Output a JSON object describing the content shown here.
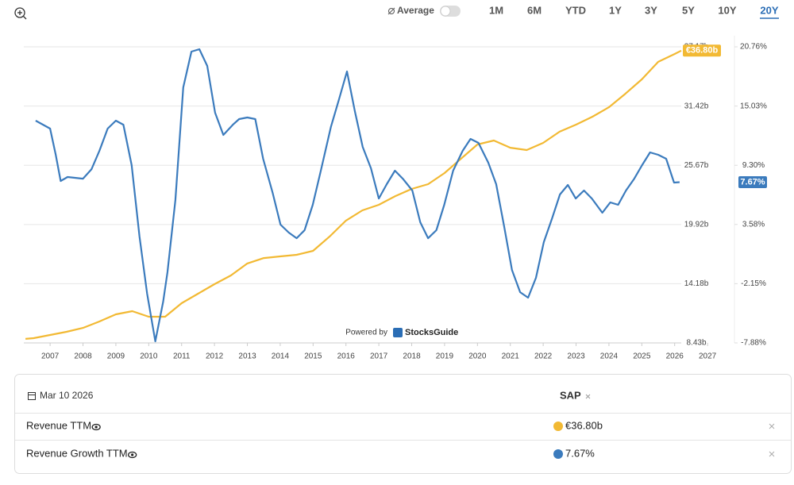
{
  "toolbar": {
    "average": "Average",
    "ranges": [
      "1M",
      "6M",
      "YTD",
      "1Y",
      "3Y",
      "5Y",
      "10Y",
      "20Y"
    ],
    "active": "20Y"
  },
  "watermark": {
    "prefix": "Powered by",
    "brand": "StocksGuide"
  },
  "chart_data": {
    "type": "line",
    "step": true,
    "grid": true,
    "xlim": [
      2006.2,
      2026.2
    ],
    "xticks": [
      2007,
      2008,
      2009,
      2010,
      2011,
      2012,
      2013,
      2014,
      2015,
      2016,
      2017,
      2018,
      2019,
      2020,
      2021,
      2022,
      2023,
      2024,
      2025,
      2026,
      2027
    ],
    "ylim": [
      8.43,
      37.17
    ],
    "yticks": [
      {
        "value": 8.43,
        "label": "8.43b"
      },
      {
        "value": 14.18,
        "label": "14.18b"
      },
      {
        "value": 19.92,
        "label": "19.92b"
      },
      {
        "value": 25.67,
        "label": "25.67b"
      },
      {
        "value": 31.42,
        "label": "31.42b"
      },
      {
        "value": 37.17,
        "label": "37.17b"
      }
    ],
    "y2lim": [
      -7.88,
      20.76
    ],
    "y2ticks": [
      {
        "value": -7.88,
        "label": "-7.88%"
      },
      {
        "value": -2.15,
        "label": "-2.15%"
      },
      {
        "value": 3.58,
        "label": "3.58%"
      },
      {
        "value": 9.3,
        "label": "9.30%"
      },
      {
        "value": 15.03,
        "label": "15.03%"
      },
      {
        "value": 20.76,
        "label": "20.76%"
      }
    ],
    "series": [
      {
        "name": "Revenue TTM",
        "color": "#f2b933",
        "end_label": "€36.80b",
        "x": [
          2006.25,
          2006.5,
          2007.0,
          2007.5,
          2008.0,
          2008.5,
          2009.0,
          2009.5,
          2010.0,
          2010.5,
          2011.0,
          2011.5,
          2012.0,
          2012.5,
          2013.0,
          2013.5,
          2014.0,
          2014.5,
          2015.0,
          2015.5,
          2016.0,
          2016.5,
          2017.0,
          2017.5,
          2018.0,
          2018.5,
          2019.0,
          2019.5,
          2020.0,
          2020.5,
          2021.0,
          2021.5,
          2022.0,
          2022.5,
          2023.0,
          2023.5,
          2024.0,
          2024.5,
          2025.0,
          2025.5,
          2026.0,
          2026.2
        ],
        "values": [
          8.82,
          8.89,
          9.2,
          9.51,
          9.89,
          10.51,
          11.2,
          11.51,
          10.97,
          10.97,
          12.28,
          13.21,
          14.13,
          14.98,
          16.14,
          16.67,
          16.83,
          16.98,
          17.37,
          18.75,
          20.3,
          21.3,
          21.84,
          22.68,
          23.38,
          23.84,
          24.92,
          26.31,
          27.69,
          28.08,
          27.38,
          27.15,
          27.85,
          28.93,
          29.62,
          30.39,
          31.31,
          32.62,
          34.01,
          35.71,
          36.48,
          36.8
        ]
      },
      {
        "name": "Revenue Growth TTM",
        "color": "#3b7bbd",
        "axis": "y2",
        "end_label": "7.67%",
        "x": [
          2006.56,
          2007.0,
          2007.17,
          2007.32,
          2007.53,
          2008.0,
          2008.26,
          2008.5,
          2008.75,
          2009.0,
          2009.23,
          2009.48,
          2009.72,
          2009.95,
          2010.2,
          2010.44,
          2010.57,
          2010.81,
          2011.05,
          2011.3,
          2011.54,
          2011.78,
          2012.02,
          2012.27,
          2012.56,
          2012.75,
          2013.0,
          2013.24,
          2013.48,
          2013.77,
          2014.01,
          2014.26,
          2014.5,
          2014.74,
          2014.99,
          2015.23,
          2015.54,
          2015.79,
          2016.03,
          2016.27,
          2016.51,
          2016.76,
          2017.0,
          2017.24,
          2017.49,
          2017.73,
          2018.02,
          2018.26,
          2018.5,
          2018.75,
          2018.99,
          2019.26,
          2019.55,
          2019.79,
          2020.03,
          2020.33,
          2020.57,
          2020.81,
          2021.05,
          2021.3,
          2021.54,
          2021.78,
          2022.02,
          2022.27,
          2022.51,
          2022.75,
          2022.99,
          2023.24,
          2023.48,
          2023.8,
          2024.04,
          2024.28,
          2024.52,
          2024.77,
          2025.01,
          2025.25,
          2025.5,
          2025.74,
          2025.98,
          2026.15
        ],
        "values": [
          13.62,
          12.85,
          10.32,
          7.78,
          8.17,
          8.01,
          8.93,
          10.7,
          12.85,
          13.62,
          13.23,
          9.32,
          2.41,
          -3.12,
          -7.73,
          -3.89,
          -1.05,
          5.94,
          16.84,
          20.3,
          20.53,
          18.92,
          14.39,
          12.24,
          13.23,
          13.77,
          13.93,
          13.77,
          9.93,
          6.63,
          3.56,
          2.79,
          2.25,
          3.02,
          5.48,
          8.7,
          13.0,
          15.69,
          18.38,
          14.54,
          11.08,
          9.01,
          6.09,
          7.48,
          8.78,
          8.01,
          6.86,
          3.79,
          2.25,
          3.02,
          5.48,
          8.78,
          10.7,
          11.85,
          11.47,
          9.55,
          7.48,
          3.41,
          -0.82,
          -2.97,
          -3.5,
          -1.58,
          1.87,
          4.17,
          6.48,
          7.4,
          6.09,
          6.86,
          6.09,
          4.71,
          5.71,
          5.48,
          6.86,
          8.01,
          9.32,
          10.55,
          10.32,
          9.93,
          7.63,
          7.67
        ]
      }
    ]
  },
  "table": {
    "date": "Mar 10 2026",
    "ticker": "SAP"
  }
}
